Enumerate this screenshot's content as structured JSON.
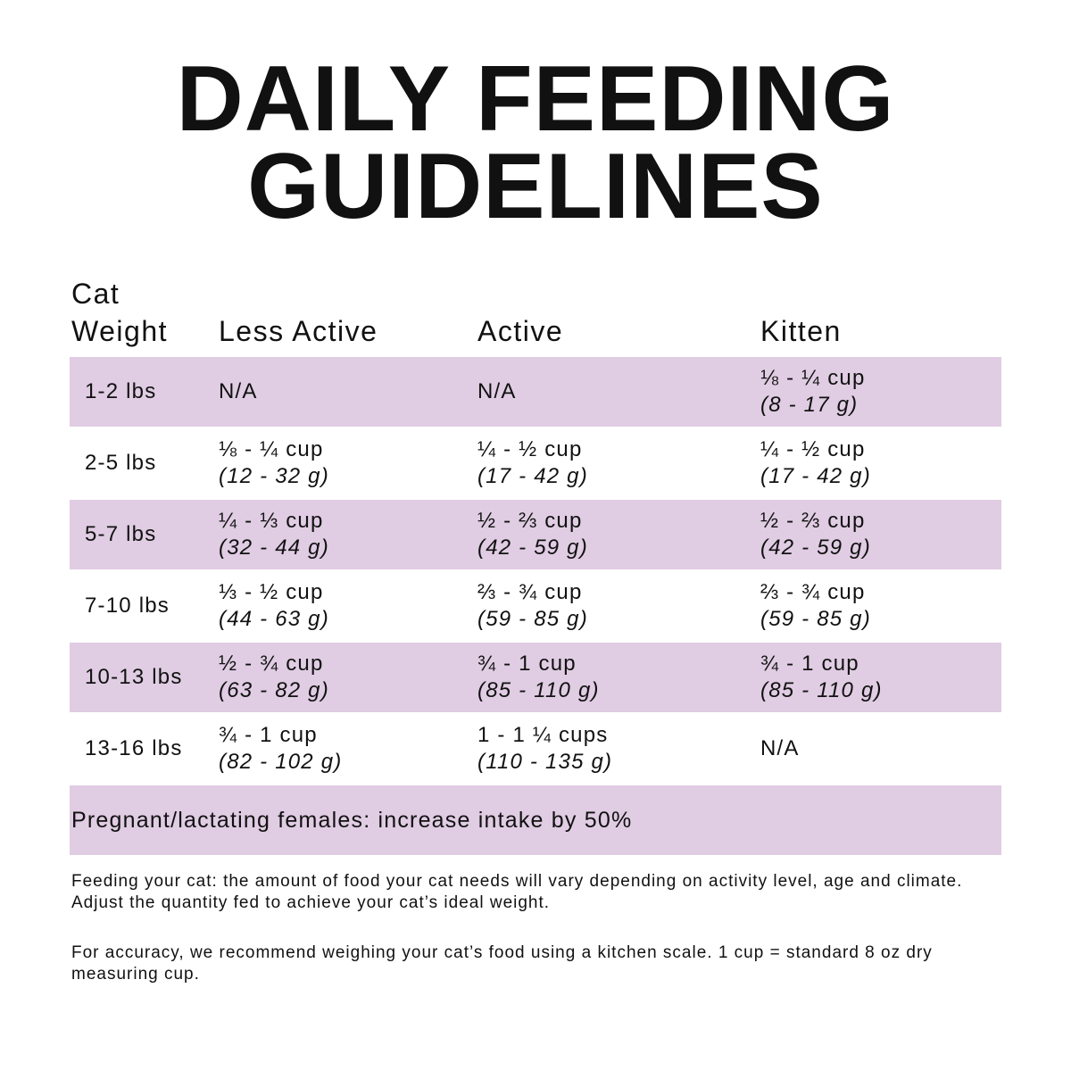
{
  "header": {
    "title": [
      "DAILY FEEDING",
      "GUIDELINES"
    ]
  },
  "table": {
    "columns": [
      "Cat Weight",
      "Less Active",
      "Active",
      "Kitten"
    ],
    "rows": [
      {
        "weight": "1-2 lbs",
        "cells": [
          {
            "amount": "N/A"
          },
          {
            "amount": "N/A"
          },
          {
            "amount": "⅛ - ¼ cup",
            "grams": "(8 - 17 g)"
          }
        ]
      },
      {
        "weight": "2-5 lbs",
        "cells": [
          {
            "amount": "⅛ - ¼ cup",
            "grams": "(12 - 32 g)"
          },
          {
            "amount": "¼ - ½ cup",
            "grams": "(17 - 42 g)"
          },
          {
            "amount": "¼ - ½ cup",
            "grams": "(17 - 42 g)"
          }
        ]
      },
      {
        "weight": "5-7 lbs",
        "cells": [
          {
            "amount": "¼ - ⅓ cup",
            "grams": "(32 - 44 g)"
          },
          {
            "amount": "½ - ⅔ cup",
            "grams": "(42 - 59 g)"
          },
          {
            "amount": "½ - ⅔ cup",
            "grams": "(42 - 59 g)"
          }
        ]
      },
      {
        "weight": "7-10 lbs",
        "cells": [
          {
            "amount": "⅓ - ½ cup",
            "grams": "(44 - 63 g)"
          },
          {
            "amount": "⅔ - ¾ cup",
            "grams": "(59 - 85 g)"
          },
          {
            "amount": "⅔ - ¾ cup",
            "grams": "(59 - 85 g)"
          }
        ]
      },
      {
        "weight": "10-13 lbs",
        "cells": [
          {
            "amount": "½ - ¾ cup",
            "grams": "(63 - 82 g)"
          },
          {
            "amount": "¾ - 1 cup",
            "grams": "(85 - 110 g)"
          },
          {
            "amount": "¾ - 1 cup",
            "grams": "(85 - 110 g)"
          }
        ]
      },
      {
        "weight": "13-16 lbs",
        "cells": [
          {
            "amount": "¾ - 1 cup",
            "grams": "(82 - 102 g)"
          },
          {
            "amount": "1 - 1 ¼ cups",
            "grams": "(110 - 135 g)"
          },
          {
            "amount": "N/A"
          }
        ]
      }
    ],
    "footer": "Pregnant/lactating females: increase intake by 50%"
  },
  "notes": [
    "Feeding your cat: the amount of food your cat needs will vary depending on activity level, age and climate. Adjust the quantity fed to achieve your cat’s ideal weight.",
    "For accuracy, we recommend weighing your cat’s food using a kitchen scale. 1 cup = standard 8 oz dry measuring cup."
  ]
}
